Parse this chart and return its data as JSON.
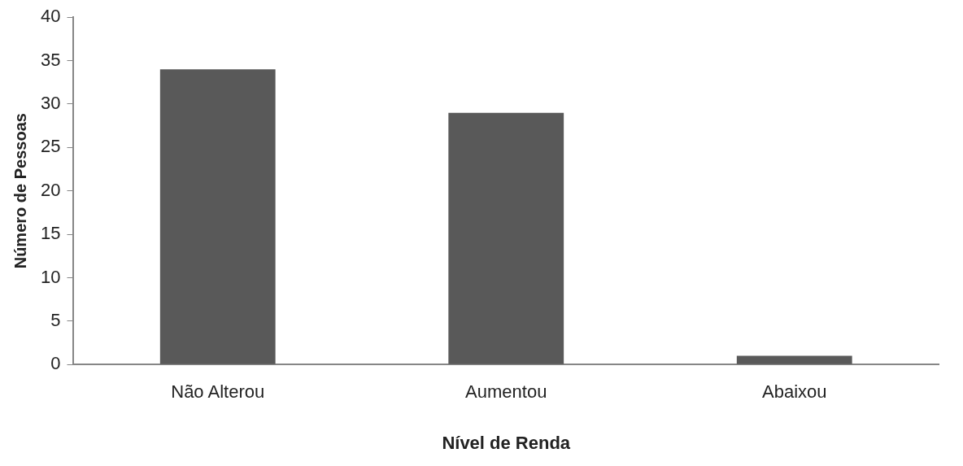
{
  "chart_data": {
    "type": "bar",
    "xlabel": "Nível de Renda",
    "ylabel": "Número de Pessoas",
    "categories": [
      "Não Alterou",
      "Aumentou",
      "Abaixou"
    ],
    "values": [
      34,
      29,
      1
    ],
    "color": "#595959",
    "ylim": [
      0,
      40
    ],
    "yticks": [
      0,
      5,
      10,
      15,
      20,
      25,
      30,
      35,
      40
    ],
    "grid": false,
    "legend": false
  }
}
